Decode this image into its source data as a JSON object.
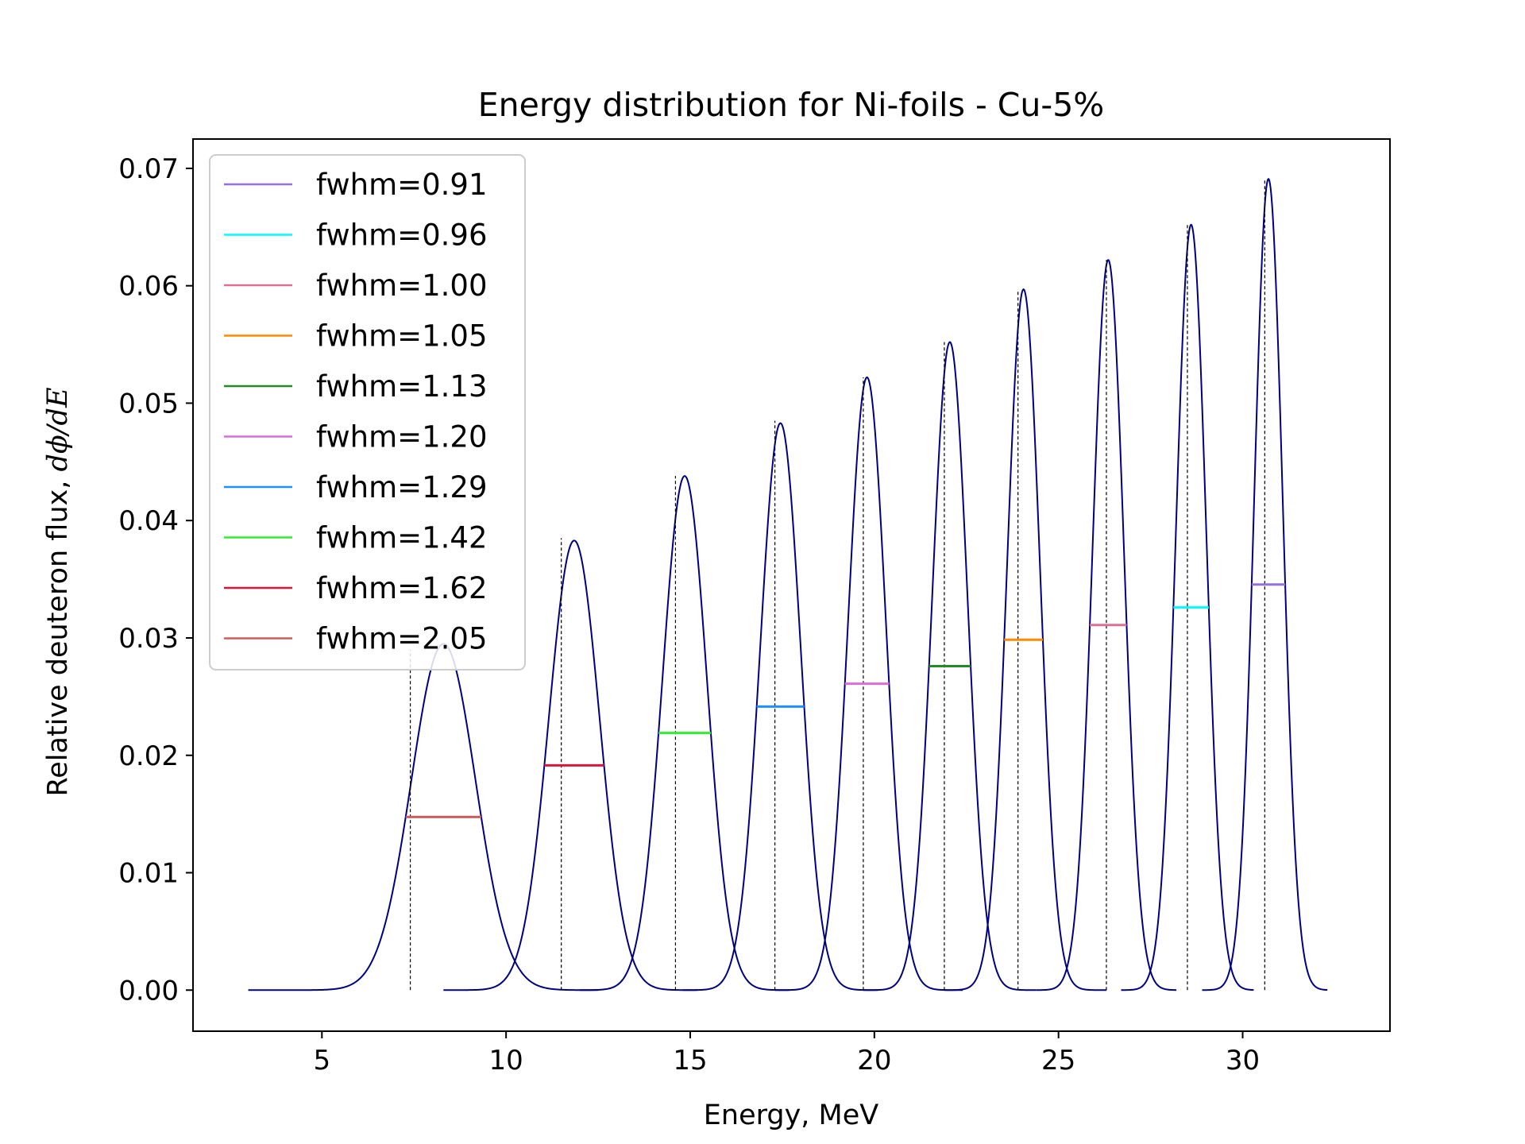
{
  "chart_data": {
    "type": "line",
    "title": "Energy distribution for Ni-foils - Cu-5%",
    "xlabel": "Energy, MeV",
    "ylabel_text": "Relative deuteron flux, ",
    "ylabel_math": "dϕ/dE",
    "xlim": [
      1.5,
      34.0
    ],
    "ylim": [
      -0.0035,
      0.0725
    ],
    "xticks": [
      5,
      10,
      15,
      20,
      25,
      30
    ],
    "xtick_labels": [
      "5",
      "10",
      "15",
      "20",
      "25",
      "30"
    ],
    "yticks": [
      0.0,
      0.01,
      0.02,
      0.03,
      0.04,
      0.05,
      0.06,
      0.07
    ],
    "ytick_labels": [
      "0.00",
      "0.01",
      "0.02",
      "0.03",
      "0.04",
      "0.05",
      "0.06",
      "0.07"
    ],
    "grid": false,
    "legend_placement": "upper-left",
    "curve_color": "#00007f",
    "series": [
      {
        "name": "fwhm=2.05",
        "color": "#cd5c5c",
        "center": 8.3,
        "peak": 0.0295,
        "fwhm": 2.05,
        "range": [
          3.0,
          12.5
        ],
        "mean_line": {
          "x": 7.4,
          "top": 0.029
        }
      },
      {
        "name": "fwhm=1.62",
        "color": "#dc143c",
        "center": 11.85,
        "peak": 0.0383,
        "fwhm": 1.62,
        "range": [
          8.3,
          15.2
        ],
        "mean_line": {
          "x": 11.5,
          "top": 0.0385
        }
      },
      {
        "name": "fwhm=1.42",
        "color": "#32ee32",
        "center": 14.85,
        "peak": 0.0438,
        "fwhm": 1.42,
        "range": [
          12.0,
          17.7
        ],
        "mean_line": {
          "x": 14.6,
          "top": 0.0438
        }
      },
      {
        "name": "fwhm=1.29",
        "color": "#1e90ff",
        "center": 17.45,
        "peak": 0.0483,
        "fwhm": 1.29,
        "range": [
          14.8,
          20.1
        ],
        "mean_line": {
          "x": 17.3,
          "top": 0.0485
        }
      },
      {
        "name": "fwhm=1.20",
        "color": "#da70d6",
        "center": 19.8,
        "peak": 0.0522,
        "fwhm": 1.2,
        "range": [
          17.3,
          22.4
        ],
        "mean_line": {
          "x": 19.7,
          "top": 0.0522
        }
      },
      {
        "name": "fwhm=1.13",
        "color": "#228b22",
        "center": 22.05,
        "peak": 0.0552,
        "fwhm": 1.13,
        "range": [
          19.7,
          24.4
        ],
        "mean_line": {
          "x": 21.9,
          "top": 0.0552
        }
      },
      {
        "name": "fwhm=1.05",
        "color": "#ff8c00",
        "center": 24.05,
        "peak": 0.0597,
        "fwhm": 1.05,
        "range": [
          21.9,
          26.3
        ],
        "mean_line": {
          "x": 23.9,
          "top": 0.0597
        }
      },
      {
        "name": "fwhm=1.00",
        "color": "#db7093",
        "center": 26.35,
        "peak": 0.0622,
        "fwhm": 1.0,
        "range": [
          24.4,
          28.2
        ],
        "mean_line": {
          "x": 26.3,
          "top": 0.0622
        }
      },
      {
        "name": "fwhm=0.96",
        "color": "#00ffff",
        "center": 28.6,
        "peak": 0.0652,
        "fwhm": 0.96,
        "range": [
          26.7,
          30.3
        ],
        "mean_line": {
          "x": 28.5,
          "top": 0.0652
        }
      },
      {
        "name": "fwhm=0.91",
        "color": "#9370db",
        "center": 30.7,
        "peak": 0.0691,
        "fwhm": 0.91,
        "range": [
          28.9,
          32.3
        ],
        "mean_line": {
          "x": 30.6,
          "top": 0.0691
        }
      }
    ]
  }
}
